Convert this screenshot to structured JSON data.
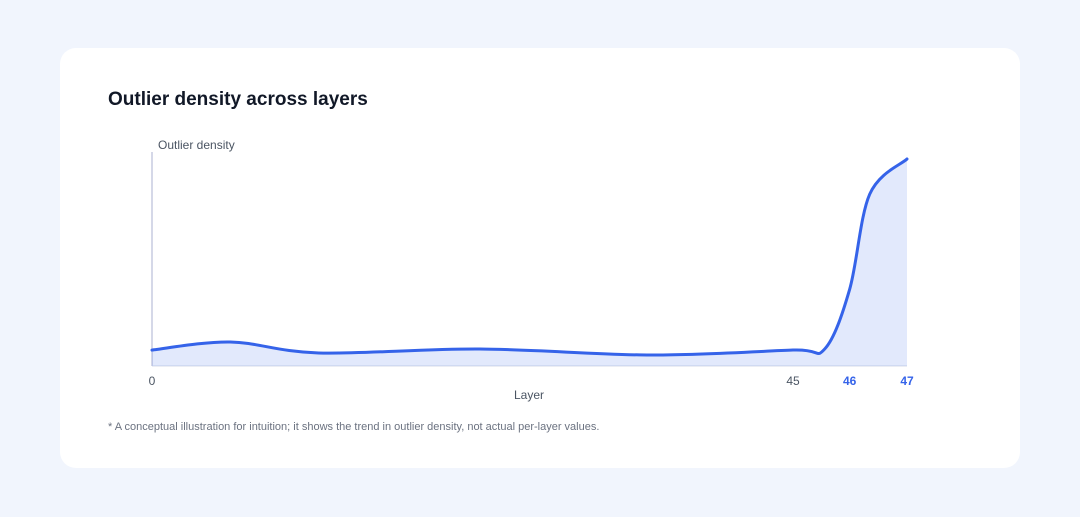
{
  "chart_data": {
    "type": "area",
    "title": "Outlier density across layers",
    "y_label": "Outlier density",
    "x_label": "Layer",
    "footnote": "* A conceptual illustration for intuition; it shows the trend in outlier density, not actual per-layer values.",
    "x": [
      0,
      5.5,
      11.7,
      23,
      35,
      45,
      45.56,
      46,
      46.35,
      47
    ],
    "series": [
      {
        "name": "Outlier density",
        "color": "#3563e9",
        "values": [
          0.077,
          0.116,
          0.063,
          0.082,
          0.053,
          0.077,
          0.082,
          0.37,
          0.83,
          1.0
        ]
      }
    ],
    "xlim": [
      0,
      47
    ],
    "xticks": [
      0,
      45,
      46,
      47
    ],
    "highlighted_ticks": [
      46,
      47
    ],
    "ylim": [
      0,
      1
    ]
  }
}
